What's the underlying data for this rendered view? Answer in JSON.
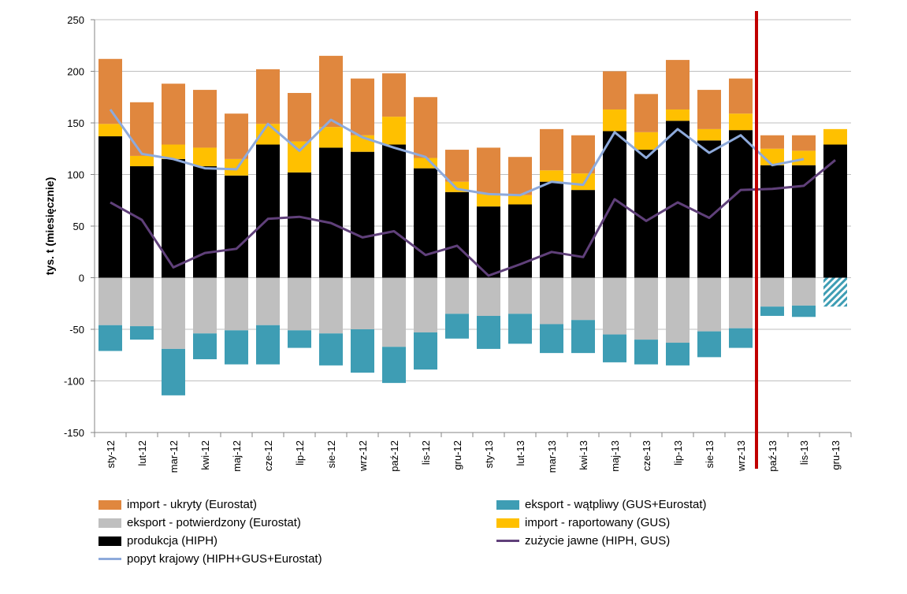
{
  "chart_data": {
    "type": "bar",
    "stacked": true,
    "title": "",
    "xlabel": "",
    "ylabel": "tys. t (miesięcznie)",
    "ylim": [
      -150,
      250
    ],
    "yticks": [
      250,
      200,
      150,
      100,
      50,
      0,
      -50,
      -100,
      -150
    ],
    "grid": true,
    "categories": [
      "sty-12",
      "lut-12",
      "mar-12",
      "kwi-12",
      "maj-12",
      "cze-12",
      "lip-12",
      "sie-12",
      "wrz-12",
      "paź-12",
      "lis-12",
      "gru-12",
      "sty-13",
      "lut-13",
      "mar-13",
      "kwi-13",
      "maj-13",
      "cze-13",
      "lip-13",
      "sie-13",
      "wrz-13",
      "paź-13",
      "lis-13",
      "gru-13"
    ],
    "forecast_divider_after": "wrz-13",
    "divider_color": "#c00000",
    "series": [
      {
        "name": "produkcja (HIPH)",
        "kind": "bar",
        "color": "#000000",
        "values": [
          137,
          108,
          115,
          108,
          99,
          129,
          102,
          126,
          122,
          129,
          106,
          83,
          69,
          71,
          93,
          85,
          142,
          124,
          152,
          133,
          143,
          109,
          109,
          129
        ]
      },
      {
        "name": "import - raportowany (GUS)",
        "kind": "bar",
        "color": "#ffc000",
        "values": [
          12,
          10,
          14,
          18,
          16,
          20,
          30,
          20,
          16,
          27,
          10,
          10,
          12,
          9,
          11,
          16,
          21,
          17,
          11,
          11,
          16,
          16,
          14,
          15
        ]
      },
      {
        "name": "import - ukryty (Eurostat)",
        "kind": "bar",
        "color": "#e0873e",
        "values": [
          63,
          52,
          59,
          56,
          44,
          53,
          47,
          69,
          55,
          42,
          59,
          31,
          45,
          37,
          40,
          37,
          37,
          37,
          48,
          38,
          34,
          13,
          15,
          0
        ]
      },
      {
        "name": "eksport - potwierdzony (Eurostat)",
        "kind": "bar",
        "color": "#bfbfbf",
        "values": [
          -46,
          -47,
          -69,
          -54,
          -51,
          -46,
          -51,
          -54,
          -50,
          -67,
          -53,
          -35,
          -37,
          -35,
          -45,
          -41,
          -55,
          -60,
          -63,
          -52,
          -49,
          -28,
          -27,
          0
        ]
      },
      {
        "name": "eksport - wątpliwy (GUS+Eurostat)",
        "kind": "bar",
        "color": "#3e9db4",
        "values": [
          -25,
          -13,
          -45,
          -25,
          -33,
          -38,
          -17,
          -31,
          -42,
          -35,
          -36,
          -24,
          -32,
          -29,
          -28,
          -32,
          -27,
          -24,
          -22,
          -25,
          -19,
          -9,
          -11,
          -28
        ],
        "hatched_categories": [
          "gru-13"
        ]
      },
      {
        "name": "zużycie jawne (HIPH, GUS)",
        "kind": "line",
        "color": "#60407a",
        "values": [
          73,
          56,
          10,
          24,
          28,
          57,
          59,
          53,
          39,
          45,
          22,
          31,
          2,
          13,
          25,
          20,
          76,
          55,
          73,
          58,
          85,
          86,
          89,
          114
        ]
      },
      {
        "name": "popyt krajowy (HIPH+GUS+Eurostat)",
        "kind": "line",
        "color": "#8eaadb",
        "values": [
          163,
          120,
          115,
          106,
          105,
          149,
          123,
          153,
          136,
          126,
          117,
          86,
          81,
          80,
          93,
          90,
          141,
          116,
          144,
          121,
          138,
          109,
          115,
          null
        ]
      }
    ]
  },
  "legend": {
    "items": [
      {
        "label": "import - ukryty (Eurostat)",
        "color": "#e0873e",
        "kind": "box"
      },
      {
        "label": "eksport - wątpliwy (GUS+Eurostat)",
        "color": "#3e9db4",
        "kind": "box"
      },
      {
        "label": "eksport - potwierdzony (Eurostat)",
        "color": "#bfbfbf",
        "kind": "box"
      },
      {
        "label": "import - raportowany (GUS)",
        "color": "#ffc000",
        "kind": "box"
      },
      {
        "label": "produkcja (HIPH)",
        "color": "#000000",
        "kind": "box"
      },
      {
        "label": "zużycie jawne (HIPH, GUS)",
        "color": "#60407a",
        "kind": "line"
      },
      {
        "label": "popyt krajowy (HIPH+GUS+Eurostat)",
        "color": "#8eaadb",
        "kind": "line"
      }
    ]
  }
}
